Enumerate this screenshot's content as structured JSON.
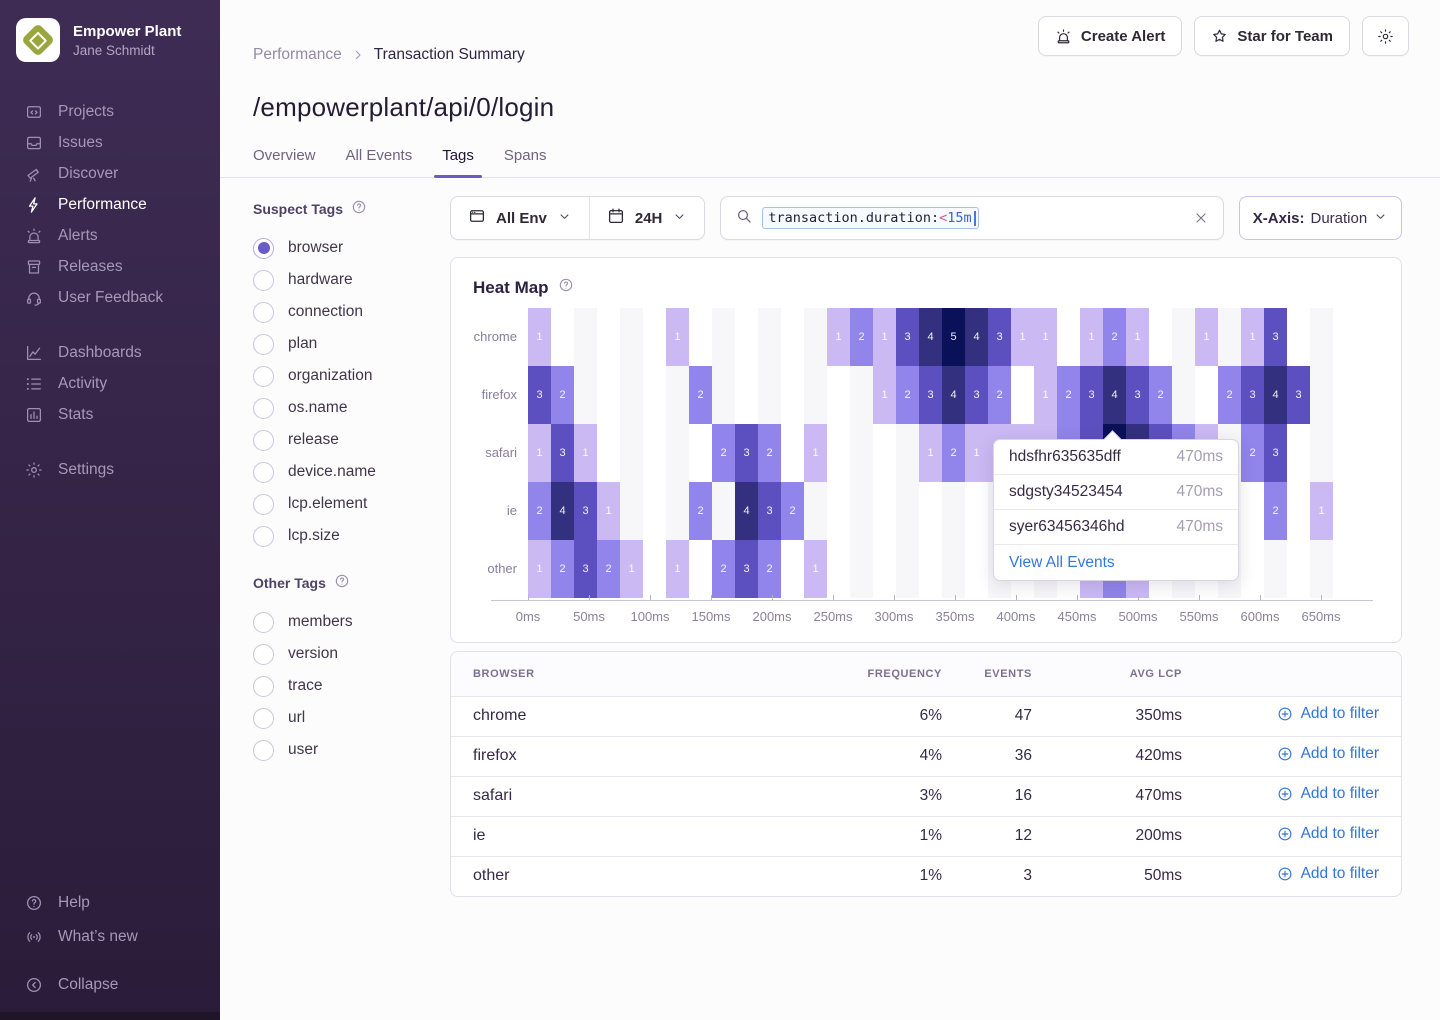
{
  "sidebar": {
    "org_name": "Empower Plant",
    "user_name": "Jane Schmidt",
    "groups": [
      {
        "items": [
          {
            "icon": "projects",
            "label": "Projects"
          },
          {
            "icon": "issues",
            "label": "Issues"
          },
          {
            "icon": "discover",
            "label": "Discover"
          },
          {
            "icon": "performance",
            "label": "Performance",
            "active": true
          },
          {
            "icon": "alerts",
            "label": "Alerts"
          },
          {
            "icon": "releases",
            "label": "Releases"
          },
          {
            "icon": "user-feedback",
            "label": "User Feedback"
          }
        ]
      },
      {
        "items": [
          {
            "icon": "dashboards",
            "label": "Dashboards"
          },
          {
            "icon": "activity",
            "label": "Activity"
          },
          {
            "icon": "stats",
            "label": "Stats"
          }
        ]
      },
      {
        "items": [
          {
            "icon": "settings",
            "label": "Settings"
          }
        ]
      }
    ],
    "footer": [
      {
        "icon": "help",
        "label": "Help"
      },
      {
        "icon": "whats-new",
        "label": "What’s new"
      },
      {
        "icon": "collapse",
        "label": "Collapse"
      }
    ]
  },
  "header": {
    "breadcrumb": [
      "Performance",
      "Transaction Summary"
    ],
    "title": "/empowerplant/api/0/login",
    "tabs": [
      {
        "label": "Overview",
        "active": false
      },
      {
        "label": "All Events",
        "active": false
      },
      {
        "label": "Tags",
        "active": true
      },
      {
        "label": "Spans",
        "active": false
      }
    ],
    "actions": [
      {
        "icon": "alerts",
        "label": "Create Alert"
      },
      {
        "icon": "star",
        "label": "Star for Team"
      }
    ]
  },
  "tags_panel": {
    "suspect_title": "Suspect Tags",
    "suspect": [
      {
        "label": "browser",
        "selected": true
      },
      {
        "label": "hardware",
        "selected": false
      },
      {
        "label": "connection",
        "selected": false
      },
      {
        "label": "plan",
        "selected": false
      },
      {
        "label": "organization",
        "selected": false
      },
      {
        "label": "os.name",
        "selected": false
      },
      {
        "label": "release",
        "selected": false
      },
      {
        "label": "device.name",
        "selected": false
      },
      {
        "label": "lcp.element",
        "selected": false
      },
      {
        "label": "lcp.size",
        "selected": false
      }
    ],
    "other_title": "Other Tags",
    "other": [
      {
        "label": "members",
        "selected": false
      },
      {
        "label": "version",
        "selected": false
      },
      {
        "label": "trace",
        "selected": false
      },
      {
        "label": "url",
        "selected": false
      },
      {
        "label": "user",
        "selected": false
      }
    ]
  },
  "controls": {
    "env_label": "All Env",
    "date_label": "24H",
    "token": {
      "key": "transaction.duration:",
      "op": "<",
      "value": "15m"
    },
    "x_axis_label": "X-Axis:",
    "x_axis_value": "Duration"
  },
  "heatmap": {
    "title": "Heat Map",
    "type": "heatmap",
    "rows": [
      "chrome",
      "firefox",
      "safari",
      "ie",
      "other"
    ],
    "x_ticks": [
      "0ms",
      "50ms",
      "100ms",
      "150ms",
      "200ms",
      "250ms",
      "300ms",
      "350ms",
      "400ms",
      "450ms",
      "500ms",
      "550ms",
      "600ms",
      "650ms"
    ],
    "palette": {
      "1": "#cbb9f3",
      "2": "#9184ea",
      "3": "#5c4fc0",
      "4": "#33307f",
      "5": "#0b1159"
    },
    "grid": [
      [
        1,
        0,
        0,
        0,
        0,
        0,
        1,
        0,
        0,
        0,
        0,
        0,
        0,
        1,
        2,
        1,
        3,
        4,
        5,
        4,
        3,
        1,
        1,
        0,
        1,
        2,
        1,
        0,
        0,
        1,
        0,
        1,
        3,
        0,
        0
      ],
      [
        3,
        2,
        0,
        0,
        0,
        0,
        0,
        2,
        0,
        0,
        0,
        0,
        0,
        0,
        0,
        1,
        2,
        3,
        4,
        3,
        2,
        0,
        1,
        2,
        3,
        4,
        3,
        2,
        0,
        0,
        2,
        3,
        4,
        3,
        0
      ],
      [
        1,
        3,
        1,
        0,
        0,
        0,
        0,
        0,
        2,
        3,
        2,
        0,
        1,
        0,
        0,
        0,
        0,
        1,
        2,
        1,
        1,
        1,
        1,
        2,
        3,
        5,
        4,
        3,
        2,
        1,
        0,
        2,
        3,
        0,
        0
      ],
      [
        2,
        4,
        3,
        1,
        0,
        0,
        0,
        2,
        0,
        4,
        3,
        2,
        0,
        0,
        0,
        0,
        0,
        0,
        0,
        0,
        0,
        0,
        0,
        0,
        0,
        0,
        0,
        0,
        0,
        0,
        0,
        0,
        2,
        0,
        1
      ],
      [
        1,
        2,
        3,
        2,
        1,
        0,
        1,
        0,
        2,
        3,
        2,
        0,
        1,
        0,
        0,
        0,
        0,
        0,
        0,
        0,
        0,
        0,
        0,
        0,
        1,
        2,
        1,
        0,
        0,
        0,
        0,
        0,
        0,
        0,
        0
      ]
    ]
  },
  "tooltip": {
    "events": [
      {
        "event_id": "hdsfhr635635dff",
        "duration": "470ms"
      },
      {
        "event_id": "sdgsty34523454",
        "duration": "470ms"
      },
      {
        "event_id": "syer63456346hd",
        "duration": "470ms"
      }
    ],
    "footer": "View All Events"
  },
  "table": {
    "headers": [
      "BROWSER",
      "FREQUENCY",
      "EVENTS",
      "AVG LCP"
    ],
    "action_label": "Add to filter",
    "rows": [
      {
        "browser": "chrome",
        "frequency": "6%",
        "events": "47",
        "avg_lcp": "350ms"
      },
      {
        "browser": "firefox",
        "frequency": "4%",
        "events": "36",
        "avg_lcp": "420ms"
      },
      {
        "browser": "safari",
        "frequency": "3%",
        "events": "16",
        "avg_lcp": "470ms"
      },
      {
        "browser": "ie",
        "frequency": "1%",
        "events": "12",
        "avg_lcp": "200ms"
      },
      {
        "browser": "other",
        "frequency": "1%",
        "events": "3",
        "avg_lcp": "50ms"
      }
    ]
  }
}
